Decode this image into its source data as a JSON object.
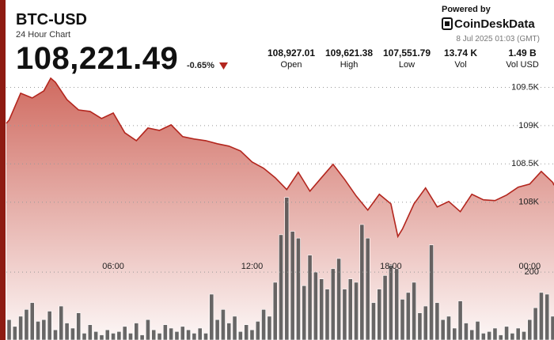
{
  "header": {
    "title": "BTC-USD",
    "subtitle": "24 Hour Chart",
    "price": "108,221.49",
    "change": "-0.65%",
    "stats": [
      {
        "value": "108,927.01",
        "label": "Open"
      },
      {
        "value": "109,621.38",
        "label": "High"
      },
      {
        "value": "107,551.79",
        "label": "Low"
      },
      {
        "value": "13.74 K",
        "label": "Vol"
      },
      {
        "value": "1.49 B",
        "label": "Vol USD"
      }
    ],
    "powered_by": "Powered by",
    "brand": "CoinDeskData",
    "timestamp": "8 Jul 2025 01:03 (GMT)"
  },
  "chart_data": [
    {
      "type": "line",
      "color": "#b3261e",
      "x": [
        1.38,
        1.5,
        2.0,
        2.5,
        3.0,
        3.3,
        3.5,
        4.0,
        4.5,
        5.0,
        5.5,
        6.0,
        6.5,
        7.0,
        7.5,
        8.0,
        8.5,
        9.0,
        9.5,
        10.0,
        10.5,
        11.0,
        11.5,
        12.0,
        12.5,
        13.0,
        13.5,
        14.0,
        14.5,
        15.0,
        15.5,
        16.0,
        16.5,
        17.0,
        17.5,
        18.0,
        18.3,
        18.5,
        19.0,
        19.5,
        20.0,
        20.5,
        21.0,
        21.5,
        22.0,
        22.5,
        23.0,
        23.5,
        24.0,
        24.5,
        25.0,
        25.05
      ],
      "values": [
        109030,
        109072,
        109423,
        109361,
        109454,
        109620,
        109567,
        109340,
        109206,
        109186,
        109093,
        109165,
        108907,
        108804,
        108969,
        108938,
        109010,
        108856,
        108825,
        108804,
        108763,
        108732,
        108670,
        108526,
        108443,
        108320,
        108165,
        108392,
        108144,
        108320,
        108495,
        108299,
        108082,
        107897,
        108103,
        107979,
        107552,
        107649,
        107979,
        108186,
        107938,
        108010,
        107876,
        108103,
        108031,
        108021,
        108093,
        108196,
        108237,
        108402,
        108258,
        108221
      ],
      "xlim": [
        1.38,
        25.05
      ],
      "xticks": [
        {
          "value": 6,
          "label": "06:00"
        },
        {
          "value": 12,
          "label": "12:00"
        },
        {
          "value": 18,
          "label": "18:00"
        },
        {
          "value": 24,
          "label": "00:00"
        }
      ],
      "ylim": [
        106200,
        109660
      ],
      "yticks": [
        {
          "value": 108000,
          "label": "108K"
        },
        {
          "value": 108500,
          "label": "108.5K"
        },
        {
          "value": 109000,
          "label": "109K"
        },
        {
          "value": 109500,
          "label": "109.5K"
        }
      ],
      "grid": true
    },
    {
      "type": "bar",
      "color": "#4d4d4d",
      "x": [
        1.5,
        1.75,
        2.0,
        2.25,
        2.5,
        2.75,
        3.0,
        3.25,
        3.5,
        3.75,
        4.0,
        4.25,
        4.5,
        4.75,
        5.0,
        5.25,
        5.5,
        5.75,
        6.0,
        6.25,
        6.5,
        6.75,
        7.0,
        7.25,
        7.5,
        7.75,
        8.0,
        8.25,
        8.5,
        8.75,
        9.0,
        9.25,
        9.5,
        9.75,
        10.0,
        10.25,
        10.5,
        10.75,
        11.0,
        11.25,
        11.5,
        11.75,
        12.0,
        12.25,
        12.5,
        12.75,
        13.0,
        13.25,
        13.5,
        13.75,
        14.0,
        14.25,
        14.5,
        14.75,
        15.0,
        15.25,
        15.5,
        15.75,
        16.0,
        16.25,
        16.5,
        16.75,
        17.0,
        17.25,
        17.5,
        17.75,
        18.0,
        18.25,
        18.5,
        18.75,
        19.0,
        19.25,
        19.5,
        19.75,
        20.0,
        20.25,
        20.5,
        20.75,
        21.0,
        21.25,
        21.5,
        21.75,
        22.0,
        22.25,
        22.5,
        22.75,
        23.0,
        23.25,
        23.5,
        23.75,
        24.0,
        24.25,
        24.5,
        24.75,
        25.0
      ],
      "values": [
        60,
        40,
        70,
        90,
        110,
        55,
        60,
        85,
        30,
        100,
        50,
        35,
        80,
        20,
        45,
        25,
        15,
        30,
        20,
        25,
        40,
        20,
        50,
        15,
        60,
        30,
        20,
        45,
        35,
        25,
        40,
        30,
        20,
        35,
        20,
        135,
        60,
        90,
        50,
        70,
        25,
        45,
        30,
        55,
        90,
        70,
        170,
        310,
        420,
        320,
        300,
        160,
        250,
        200,
        180,
        150,
        210,
        240,
        150,
        180,
        170,
        340,
        300,
        110,
        150,
        190,
        220,
        210,
        120,
        140,
        170,
        80,
        100,
        280,
        110,
        60,
        70,
        35,
        115,
        50,
        30,
        55,
        20,
        25,
        35,
        15,
        40,
        20,
        35,
        25,
        60,
        95,
        140,
        135,
        70
      ],
      "xlim": [
        1.38,
        25.05
      ],
      "ylim": [
        0,
        780
      ],
      "yticks": [
        200
      ]
    }
  ]
}
